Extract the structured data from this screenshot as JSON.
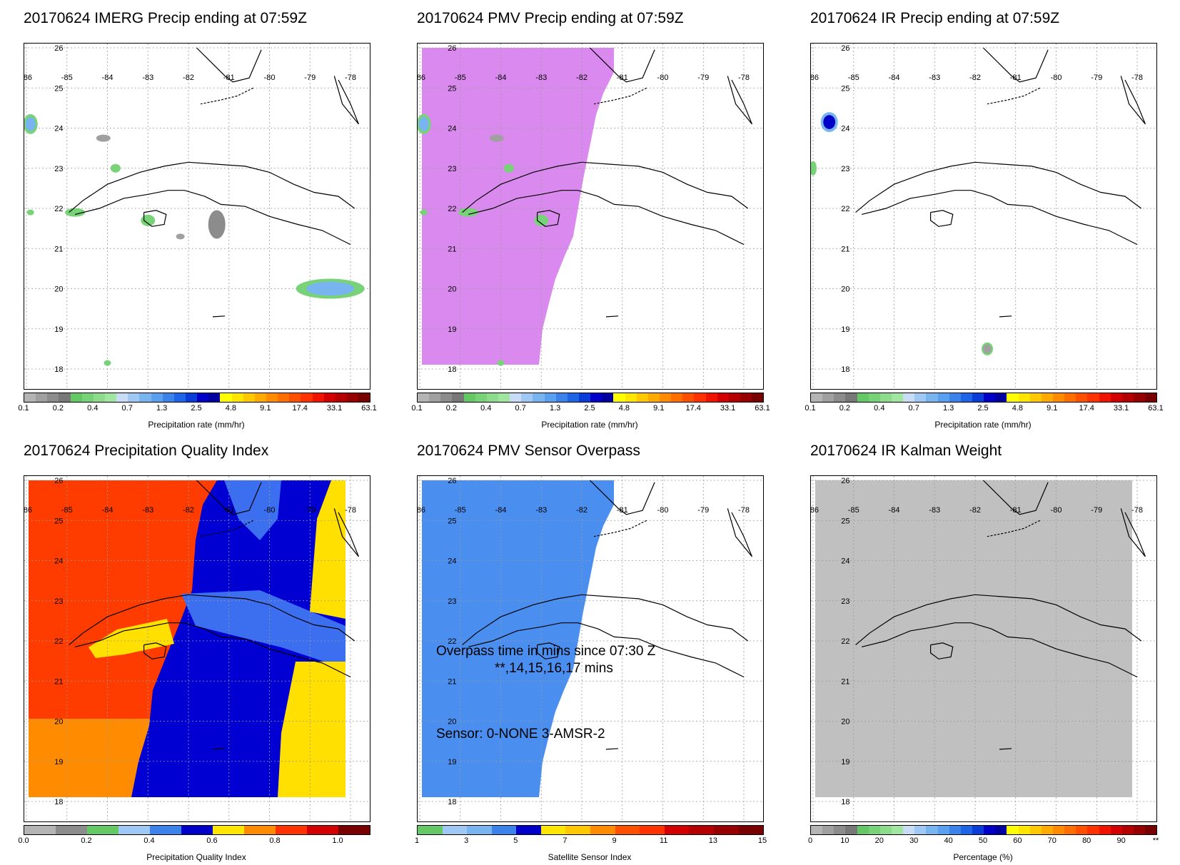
{
  "panels": [
    {
      "id": "imerg",
      "title": "20170624 IMERG Precip ending at 07:59Z",
      "colorbar": {
        "label": "Precipitation rate (mm/hr)",
        "ticks": [
          "0.1",
          "0.2",
          "0.4",
          "0.7",
          "1.3",
          "2.5",
          "4.8",
          "9.1",
          "17.4",
          "33.1",
          "63.1"
        ],
        "colors": [
          "#b4b4b4",
          "#a0a0a0",
          "#8c8c8c",
          "#787878",
          "#64c864",
          "#78d278",
          "#8cdc8c",
          "#a0e6a0",
          "#c8dcf5",
          "#a0c8f5",
          "#78b4f0",
          "#5aa0f0",
          "#3c82eb",
          "#1e64e6",
          "#0a3cd7",
          "#0000c8",
          "#0000a0",
          "#ffff00",
          "#ffe600",
          "#ffc800",
          "#ffaa00",
          "#ff8c00",
          "#ff6e00",
          "#ff5000",
          "#ff3200",
          "#f01400",
          "#d20000",
          "#b40000",
          "#960000",
          "#780000"
        ]
      },
      "features": [
        "imerg-rain"
      ]
    },
    {
      "id": "pmv",
      "title": "20170624 PMV Precip ending at 07:59Z",
      "colorbar": {
        "label": "Precipitation rate (mm/hr)",
        "ticks": [
          "0.1",
          "0.2",
          "0.4",
          "0.7",
          "1.3",
          "2.5",
          "4.8",
          "9.1",
          "17.4",
          "33.1",
          "63.1"
        ],
        "colors": [
          "#b4b4b4",
          "#a0a0a0",
          "#8c8c8c",
          "#787878",
          "#64c864",
          "#78d278",
          "#8cdc8c",
          "#a0e6a0",
          "#c8dcf5",
          "#a0c8f5",
          "#78b4f0",
          "#5aa0f0",
          "#3c82eb",
          "#1e64e6",
          "#0a3cd7",
          "#0000c8",
          "#0000a0",
          "#ffff00",
          "#ffe600",
          "#ffc800",
          "#ffaa00",
          "#ff8c00",
          "#ff6e00",
          "#ff5000",
          "#ff3200",
          "#f01400",
          "#d20000",
          "#b40000",
          "#960000",
          "#780000"
        ]
      },
      "fill_color": "#da8aee"
    },
    {
      "id": "ir",
      "title": "20170624 IR Precip ending at 07:59Z",
      "colorbar": {
        "label": "Precipitation rate (mm/hr)",
        "ticks": [
          "0.1",
          "0.2",
          "0.4",
          "0.7",
          "1.3",
          "2.5",
          "4.8",
          "9.1",
          "17.4",
          "33.1",
          "63.1"
        ],
        "colors": [
          "#b4b4b4",
          "#a0a0a0",
          "#8c8c8c",
          "#787878",
          "#64c864",
          "#78d278",
          "#8cdc8c",
          "#a0e6a0",
          "#c8dcf5",
          "#a0c8f5",
          "#78b4f0",
          "#5aa0f0",
          "#3c82eb",
          "#1e64e6",
          "#0a3cd7",
          "#0000c8",
          "#0000a0",
          "#ffff00",
          "#ffe600",
          "#ffc800",
          "#ffaa00",
          "#ff8c00",
          "#ff6e00",
          "#ff5000",
          "#ff3200",
          "#f01400",
          "#d20000",
          "#b40000",
          "#960000",
          "#780000"
        ]
      }
    },
    {
      "id": "pqi",
      "title": "20170624 Precipitation Quality Index",
      "colorbar": {
        "label": "Precipitation Quality Index",
        "ticks": [
          "0.0",
          "0.2",
          "0.4",
          "0.6",
          "0.8",
          "1.0"
        ],
        "colors": [
          "#b4b4b4",
          "#8c8c8c",
          "#64c864",
          "#a0c8f5",
          "#3c82eb",
          "#0000c8",
          "#ffe600",
          "#ff8c00",
          "#ff3200",
          "#d20000",
          "#780000"
        ]
      },
      "fill_colors": {
        "red": "#ff3c00",
        "orange": "#ff8c00",
        "blue": "#0000d2",
        "lightblue": "#3c6ef0",
        "yellow": "#ffe000"
      }
    },
    {
      "id": "sensor",
      "title": "20170624 PMV Sensor Overpass",
      "colorbar": {
        "label": "Satellite Sensor Index",
        "ticks": [
          "1",
          "3",
          "5",
          "7",
          "9",
          "11",
          "13",
          "15"
        ],
        "colors": [
          "#64c864",
          "#a0c8f5",
          "#78b4f0",
          "#3c82eb",
          "#0000c8",
          "#ffe600",
          "#ffc800",
          "#ff8c00",
          "#ff5000",
          "#ff3200",
          "#d20000",
          "#b40000",
          "#960000",
          "#780000"
        ]
      },
      "annotations": {
        "overpass": "Overpass time in mins since 07:30 Z",
        "minutes": "**,14,15,16,17 mins",
        "sensor": "Sensor:   0-NONE  3-AMSR-2"
      },
      "fill_color": "#4a8ef0"
    },
    {
      "id": "kalman",
      "title": "20170624 IR Kalman Weight",
      "colorbar": {
        "label": "Percentage (%)",
        "ticks": [
          "0",
          "10",
          "20",
          "30",
          "40",
          "50",
          "60",
          "70",
          "80",
          "90",
          "**"
        ],
        "colors": [
          "#b4b4b4",
          "#a0a0a0",
          "#8c8c8c",
          "#787878",
          "#64c864",
          "#78d278",
          "#8cdc8c",
          "#a0e6a0",
          "#c8dcf5",
          "#a0c8f5",
          "#78b4f0",
          "#5aa0f0",
          "#3c82eb",
          "#1e64e6",
          "#0a3cd7",
          "#0000c8",
          "#0000a0",
          "#ffff00",
          "#ffe600",
          "#ffc800",
          "#ffaa00",
          "#ff8c00",
          "#ff6e00",
          "#ff5000",
          "#ff3200",
          "#f01400",
          "#d20000",
          "#b40000",
          "#960000",
          "#780000"
        ]
      },
      "fill_color": "#c0c0c0"
    }
  ],
  "map_axes": {
    "lon_labels": [
      "-86",
      "-85",
      "-84",
      "-83",
      "-82",
      "-81",
      "-80",
      "-79",
      "-78"
    ],
    "lat_labels": [
      "26",
      "25",
      "24",
      "23",
      "22",
      "21",
      "20",
      "19",
      "18"
    ]
  }
}
